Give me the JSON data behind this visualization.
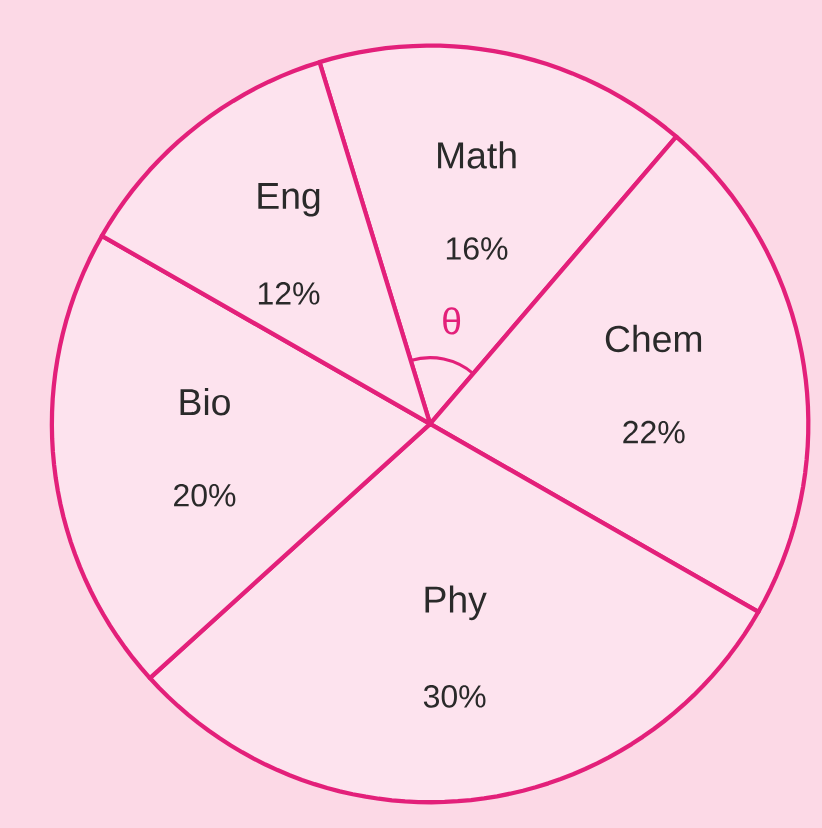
{
  "chart_data": {
    "type": "pie",
    "categories": [
      "Math",
      "Chem",
      "Phy",
      "Bio",
      "Eng"
    ],
    "values": [
      16,
      22,
      30,
      20,
      12
    ],
    "value_labels": [
      "16%",
      "22%",
      "30%",
      "20%",
      "12%"
    ],
    "colors": [
      "#fde3ee",
      "#fde3ee",
      "#fde3ee",
      "#fde3ee",
      "#fde3ee"
    ],
    "annotations": [
      "θ"
    ]
  }
}
